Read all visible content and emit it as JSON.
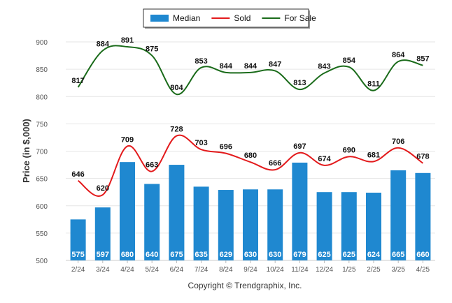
{
  "chart_data": {
    "type": "bar",
    "ylabel": "Price (in $,000)",
    "ylim": [
      500,
      900
    ],
    "yticks": [
      500,
      550,
      600,
      650,
      700,
      750,
      800,
      850,
      900
    ],
    "grid": true,
    "legend_position": "top-center",
    "categories": [
      "2/24",
      "3/24",
      "4/24",
      "5/24",
      "6/24",
      "7/24",
      "8/24",
      "9/24",
      "10/24",
      "11/24",
      "12/24",
      "1/25",
      "2/25",
      "3/25",
      "4/25"
    ],
    "series": [
      {
        "name": "Median",
        "type": "bar",
        "color": "#1f88d0",
        "values": [
          575,
          597,
          680,
          640,
          675,
          635,
          629,
          630,
          630,
          679,
          625,
          625,
          624,
          665,
          660
        ]
      },
      {
        "name": "Sold",
        "type": "line",
        "color": "#e31a1c",
        "values": [
          646,
          620,
          709,
          663,
          728,
          703,
          696,
          680,
          666,
          697,
          674,
          690,
          681,
          706,
          678
        ]
      },
      {
        "name": "For Sale",
        "type": "line",
        "color": "#1a6b1a",
        "values": [
          817,
          884,
          891,
          875,
          804,
          853,
          844,
          844,
          847,
          813,
          843,
          854,
          811,
          864,
          857
        ]
      }
    ]
  },
  "footer": "Copyright © Trendgraphix, Inc."
}
